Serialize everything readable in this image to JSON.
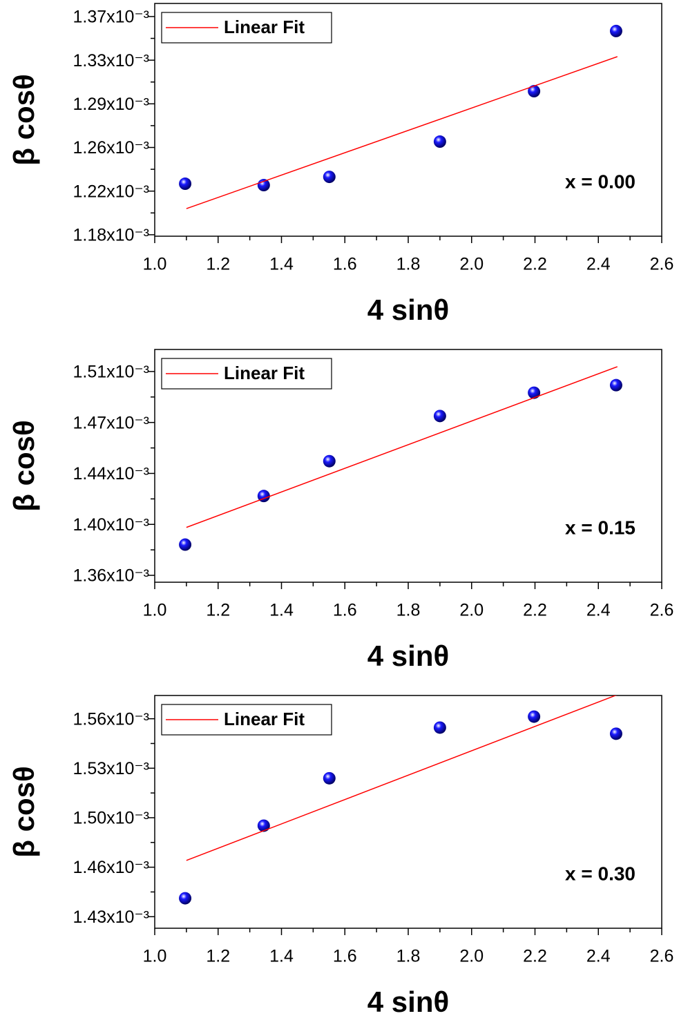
{
  "chart_data": [
    {
      "type": "scatter",
      "xlabel": "4 sinθ",
      "ylabel": "β cosθ",
      "annotation": "x = 0.00",
      "grid": false,
      "x": [
        1.096,
        1.344,
        1.551,
        1.9,
        2.197,
        2.456
      ],
      "series": [
        {
          "color": "#1a1aff",
          "values": [
            0.0012251,
            0.0012239,
            0.001231,
            0.0012613,
            0.0013046,
            0.0013563
          ]
        },
        {
          "name": "Linear Fit",
          "type": "line",
          "color": "#ff0000",
          "x": [
            1.1,
            2.46
          ],
          "values": [
            0.0012037,
            0.0013343
          ]
        }
      ],
      "xlim": [
        1.0,
        2.6
      ],
      "xticks": [
        {
          "value": 1.0,
          "label": "1.0"
        },
        1.2,
        1.4,
        1.6,
        1.8,
        {
          "value": 2.0,
          "label": "2.0"
        },
        2.2,
        2.4,
        2.6
      ],
      "ylim": [
        0.00118,
        0.00138
      ],
      "yticks": [
        {
          "value": 0.00118125,
          "label": "1.18x10⁻³"
        },
        {
          "value": 0.00121875,
          "label": "1.22x10⁻³"
        },
        {
          "value": 0.00125625,
          "label": "1.26x10⁻³"
        },
        {
          "value": 0.00129375,
          "label": "1.29x10⁻³"
        },
        {
          "value": 0.00133125,
          "label": "1.33x10⁻³"
        },
        {
          "value": 0.00136875,
          "label": "1.37x10⁻³"
        }
      ]
    },
    {
      "type": "scatter",
      "xlabel": "4 sinθ",
      "ylabel": "β cosθ",
      "annotation": "x = 0.15",
      "grid": false,
      "x": [
        1.096,
        1.344,
        1.551,
        1.9,
        2.197,
        2.456
      ],
      "series": [
        {
          "color": "#1a1aff",
          "values": [
            0.0013843,
            0.0014196,
            0.0014449,
            0.0014777,
            0.0014946,
            0.0015001
          ]
        },
        {
          "name": "Linear Fit",
          "type": "line",
          "color": "#ff0000",
          "x": [
            1.1,
            2.46
          ],
          "values": [
            0.0013968,
            0.0015135
          ]
        }
      ],
      "xlim": [
        1.0,
        2.6
      ],
      "xticks": [
        {
          "value": 1.0,
          "label": "1.0"
        },
        1.2,
        1.4,
        1.6,
        1.8,
        {
          "value": 2.0,
          "label": "2.0"
        },
        2.2,
        2.4,
        2.6
      ],
      "ylim": [
        0.001357,
        0.001526
      ],
      "yticks": [
        {
          "value": 0.001362,
          "label": "1.36x10⁻³"
        },
        {
          "value": 0.001399,
          "label": "1.40x10⁻³"
        },
        {
          "value": 0.001436,
          "label": "1.44x10⁻³"
        },
        {
          "value": 0.001473,
          "label": "1.47x10⁻³"
        },
        {
          "value": 0.00151,
          "label": "1.51x10⁻³"
        }
      ]
    },
    {
      "type": "scatter",
      "xlabel": "4 sinθ",
      "ylabel": "β cosθ",
      "annotation": "x = 0.30",
      "grid": false,
      "x": [
        1.096,
        1.344,
        1.551,
        1.9,
        2.197,
        2.456
      ],
      "series": [
        {
          "color": "#1a1aff",
          "values": [
            0.0014423,
            0.0014907,
            0.0015223,
            0.0015561,
            0.0015634,
            0.001552
          ]
        },
        {
          "name": "Linear Fit",
          "type": "line",
          "color": "#ff0000",
          "x": [
            1.1,
            2.46
          ],
          "values": [
            0.0014675,
            0.001578
          ]
        }
      ],
      "xlim": [
        1.0,
        2.6
      ],
      "xticks": [
        {
          "value": 1.0,
          "label": "1.0"
        },
        1.2,
        1.4,
        1.6,
        1.8,
        {
          "value": 2.0,
          "label": "2.0"
        },
        2.2,
        2.4,
        2.6
      ],
      "ylim": [
        0.0014223,
        0.0015775
      ],
      "yticks": [
        {
          "value": 0.00143,
          "label": "1.43x10⁻³"
        },
        {
          "value": 0.001463,
          "label": "1.46x10⁻³"
        },
        {
          "value": 0.001496,
          "label": "1.50x10⁻³"
        },
        {
          "value": 0.001529,
          "label": "1.53x10⁻³"
        },
        {
          "value": 0.001562,
          "label": "1.56x10⁻³"
        }
      ]
    }
  ]
}
